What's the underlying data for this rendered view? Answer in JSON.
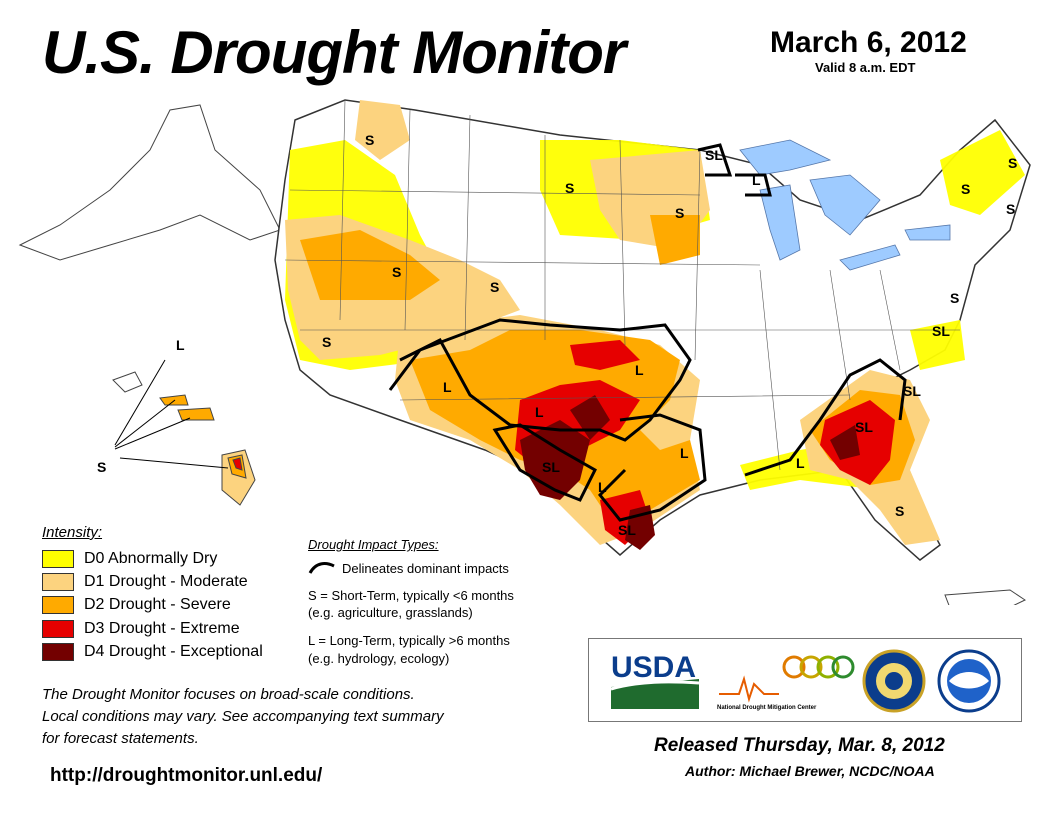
{
  "header": {
    "title": "U.S. Drought Monitor",
    "date": "March 6, 2012",
    "valid": "Valid 8 a.m. EDT"
  },
  "colors": {
    "d0": "#ffff00",
    "d1": "#fcd37f",
    "d2": "#ffaa00",
    "d3": "#e60000",
    "d4": "#730000",
    "water": "#9ecbff"
  },
  "legend": {
    "title": "Intensity:",
    "items": [
      {
        "code": "d0",
        "label": "D0 Abnormally Dry"
      },
      {
        "code": "d1",
        "label": "D1 Drought - Moderate"
      },
      {
        "code": "d2",
        "label": "D2 Drought - Severe"
      },
      {
        "code": "d3",
        "label": "D3 Drought - Extreme"
      },
      {
        "code": "d4",
        "label": "D4 Drought - Exceptional"
      }
    ]
  },
  "impacts": {
    "title": "Drought Impact Types:",
    "line_label": "Delineates dominant impacts",
    "short_term": "S = Short-Term, typically <6 months",
    "short_term_eg": "(e.g. agriculture, grasslands)",
    "long_term": "L = Long-Term, typically >6 months",
    "long_term_eg": "(e.g. hydrology, ecology)"
  },
  "map_labels": {
    "s": "S",
    "l": "L",
    "sl": "SL"
  },
  "notes": {
    "line1": "The Drought Monitor focuses on broad-scale conditions.",
    "line2": "Local conditions may vary. See accompanying text summary",
    "line3": "for forecast statements."
  },
  "logos": {
    "usda": "USDA",
    "ndmc": "National Drought Mitigation Center"
  },
  "footer": {
    "released": "Released Thursday, Mar. 8, 2012",
    "author": "Author: Michael Brewer, NCDC/NOAA",
    "url": "http://droughtmonitor.unl.edu/"
  }
}
